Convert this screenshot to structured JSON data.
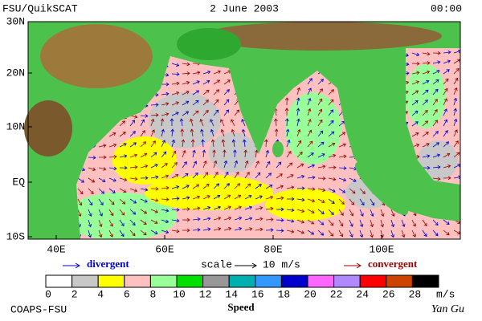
{
  "header": {
    "left": "FSU/QuikSCAT",
    "center": "2 June 2003",
    "right": "00:00"
  },
  "map": {
    "lat_labels": [
      "30N",
      "20N",
      "10N",
      "EQ",
      "10S"
    ],
    "lon_labels": [
      "40E",
      "60E",
      "80E",
      "100E"
    ]
  },
  "legend": {
    "divergent": "divergent",
    "scale": "scale",
    "scale_value": "10 m/s",
    "convergent": "convergent"
  },
  "colorbar": {
    "ticks": [
      0,
      2,
      4,
      6,
      8,
      10,
      12,
      14,
      16,
      18,
      20,
      22,
      24,
      26,
      28
    ],
    "unit": "m/s",
    "label": "Speed",
    "colors": [
      "#ffffff",
      "#c8c8c8",
      "#ffff00",
      "#ffc0c0",
      "#99ff99",
      "#00e000",
      "#989898",
      "#00b0b0",
      "#3399ff",
      "#0000cc",
      "#ff66ff",
      "#b088ff",
      "#ff0000",
      "#cc4400",
      "#000000"
    ]
  },
  "footer": {
    "left": "COAPS-FSU",
    "right": "Yan Gu"
  }
}
